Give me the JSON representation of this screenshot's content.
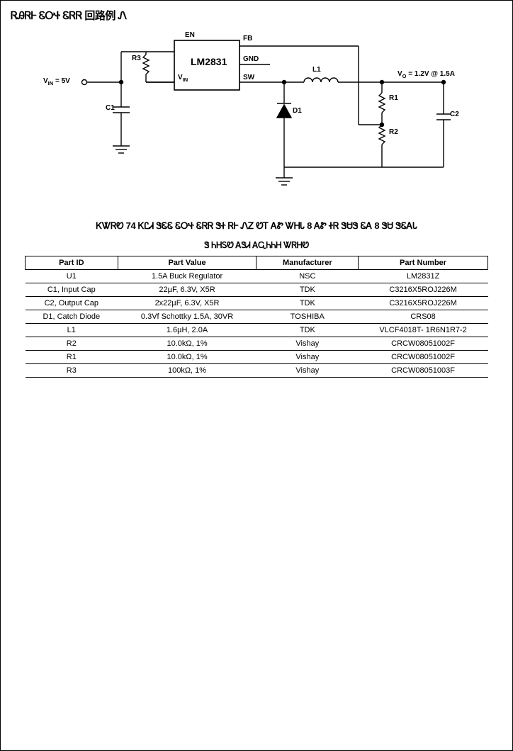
{
  "page_title": "ᏒᎯᏒᎰ ᏋᎤᏐ ᏋᏒᏒ 回路例 Ꮑ",
  "fig_caption": "ᏦᏔᏒᏬ 74 ᏦᏝᏗ ᏕᏋᏋ ᏋᎤᏐ ᏋᏒᏒ ᏕᏐ ᏒᎰ ᏁᏃ ᏬᎢ ᎪᏑ ᏔᎻᏓ 8 ᎪᏑ ᏐᏒ ᏕᏌᏕ ᏋᎪ 8 ᏕᏌ ᏕᏋᎪᏓ",
  "table_title": "Ꮥ ᏂᎻᏚᏬ ᎪᏕᏗ ᎪᏩᏂᏂᎻ ᏔᏒᎻᏬ",
  "schematic": {
    "ic_label": "LM2831",
    "pins": {
      "en": "EN",
      "fb": "FB",
      "gnd": "GND",
      "vin": "VIN",
      "sw": "SW"
    },
    "vin_label": "VIN = 5V",
    "vo_label": "VO = 1.2V @ 1.5A",
    "parts": {
      "r3": "R3",
      "c1": "C1",
      "d1": "D1",
      "l1": "L1",
      "r1": "R1",
      "r2": "R2",
      "c2": "C2"
    },
    "stroke": "#000000",
    "fill": "#ffffff",
    "lw": 1.4
  },
  "bom": {
    "columns": [
      "Part ID",
      "Part Value",
      "Manufacturer",
      "Part Number"
    ],
    "rows": [
      [
        "U1",
        "1.5A Buck Regulator",
        "NSC",
        "LM2831Z"
      ],
      [
        "C1, Input Cap",
        "22µF, 6.3V, X5R",
        "TDK",
        "C3216X5ROJ226M"
      ],
      [
        "C2, Output Cap",
        "2x22µF, 6.3V, X5R",
        "TDK",
        "C3216X5ROJ226M"
      ],
      [
        "D1, Catch Diode",
        "0.3Vf Schottky 1.5A, 30VR",
        "TOSHIBA",
        "CRS08"
      ],
      [
        "L1",
        "1.6µH, 2.0A",
        "TDK",
        "VLCF4018T- 1R6N1R7-2"
      ],
      [
        "R2",
        "10.0kΩ, 1%",
        "Vishay",
        "CRCW08051002F"
      ],
      [
        "R1",
        "10.0kΩ, 1%",
        "Vishay",
        "CRCW08051002F"
      ],
      [
        "R3",
        "100kΩ, 1%",
        "Vishay",
        "CRCW08051003F"
      ]
    ],
    "border_color": "#000000",
    "font_size": 11
  }
}
